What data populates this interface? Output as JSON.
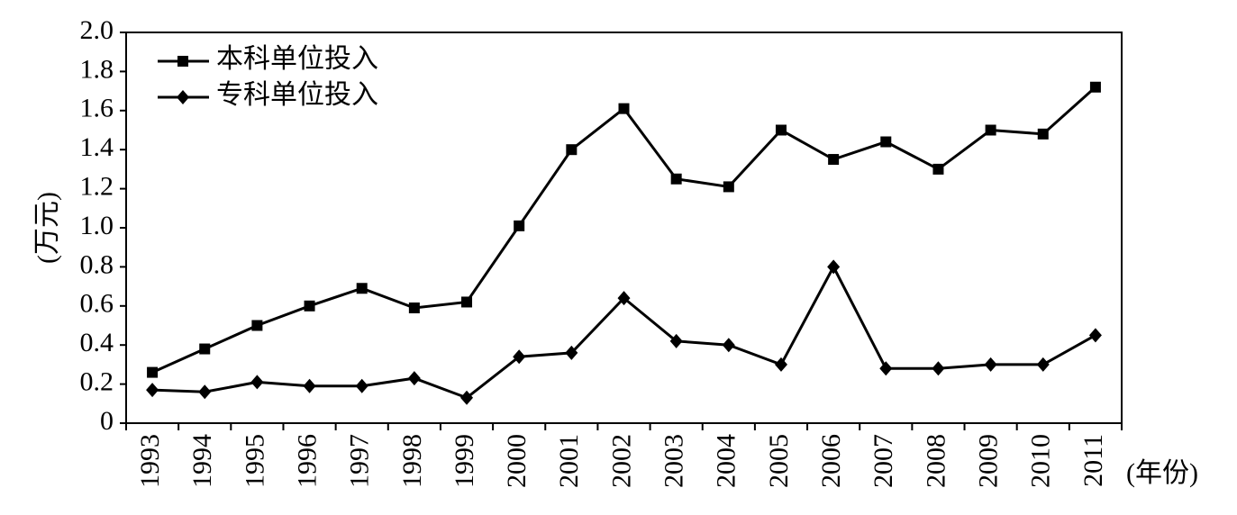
{
  "chart_data": {
    "type": "line",
    "y_label": "(万元)",
    "x_label": "(年份)",
    "categories": [
      "1993",
      "1994",
      "1995",
      "1996",
      "1997",
      "1998",
      "1999",
      "2000",
      "2001",
      "2002",
      "2003",
      "2004",
      "2005",
      "2006",
      "2007",
      "2008",
      "2009",
      "2010",
      "2011"
    ],
    "series": [
      {
        "name": "本科单位投入",
        "color": "#000000",
        "marker": "square",
        "values": [
          0.26,
          0.38,
          0.5,
          0.6,
          0.69,
          0.59,
          0.62,
          1.01,
          1.4,
          1.61,
          1.25,
          1.21,
          1.5,
          1.35,
          1.44,
          1.3,
          1.5,
          1.48,
          1.72
        ]
      },
      {
        "name": "专科单位投入",
        "color": "#000000",
        "marker": "diamond",
        "values": [
          0.17,
          0.16,
          0.21,
          0.19,
          0.19,
          0.23,
          0.13,
          0.34,
          0.36,
          0.64,
          0.42,
          0.4,
          0.3,
          0.8,
          0.28,
          0.28,
          0.3,
          0.3,
          0.45
        ]
      }
    ],
    "ylim": [
      0,
      2
    ],
    "yticks": [
      0,
      0.2,
      0.4,
      0.6,
      0.8,
      {
        "value": 1,
        "label": "1.0"
      },
      1.2,
      1.4,
      1.6,
      1.8,
      {
        "value": 2,
        "label": "2.0"
      }
    ],
    "legend": "upper-left",
    "grid": false
  }
}
